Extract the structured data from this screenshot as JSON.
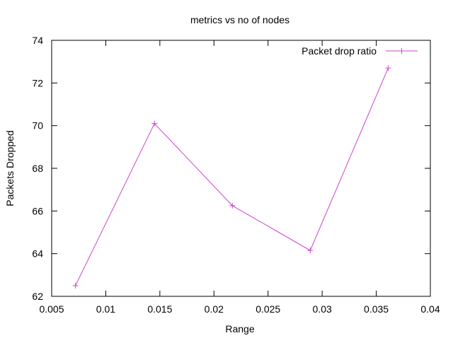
{
  "chart_data": {
    "type": "line",
    "title": "metrics vs no of nodes",
    "xlabel": "Range",
    "ylabel": "Packets Dropped",
    "xlim": [
      0.005,
      0.04
    ],
    "ylim": [
      62,
      74
    ],
    "x_ticks": [
      0.005,
      0.01,
      0.015,
      0.02,
      0.025,
      0.03,
      0.035,
      0.04
    ],
    "x_tick_labels": [
      "0.005",
      "0.01",
      "0.015",
      "0.02",
      "0.025",
      "0.03",
      "0.035",
      "0.04"
    ],
    "y_ticks": [
      62,
      64,
      66,
      68,
      70,
      72,
      74
    ],
    "y_tick_labels": [
      "62",
      "64",
      "66",
      "68",
      "70",
      "72",
      "74"
    ],
    "grid": false,
    "legend_position": "top-right",
    "series": [
      {
        "name": "Packet drop ratio",
        "color": "#cc44cc",
        "marker": "plus",
        "x": [
          0.0072,
          0.0145,
          0.0217,
          0.0289,
          0.0361
        ],
        "y": [
          62.5,
          70.1,
          66.25,
          64.15,
          72.7
        ]
      }
    ]
  }
}
